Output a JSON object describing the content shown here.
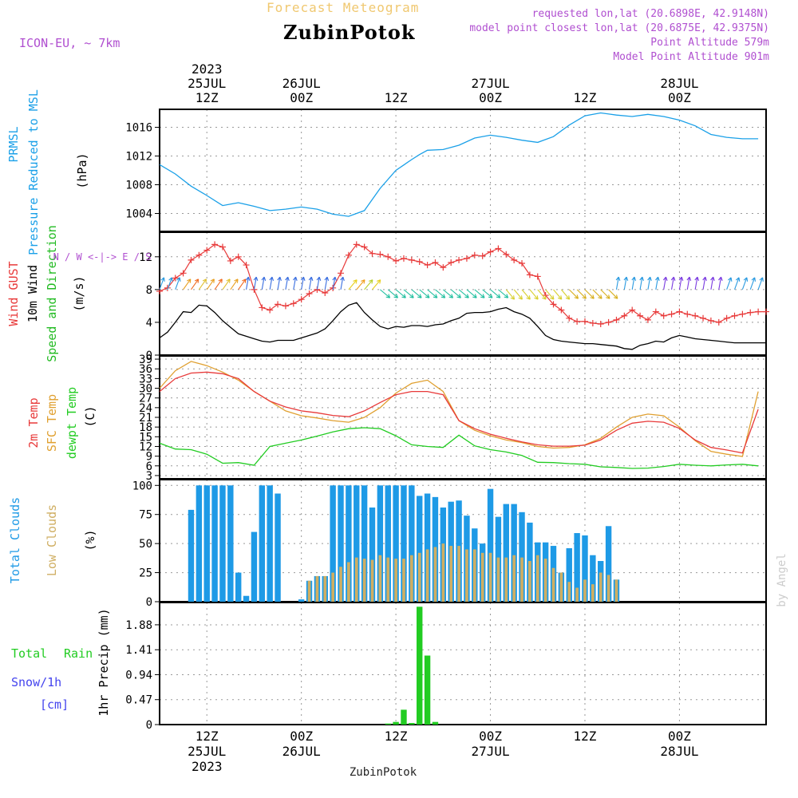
{
  "header": {
    "title": "Forecast Meteogram",
    "location": "ZubinPotok",
    "model": "ICON-EU, ~ 7km",
    "requested": "requested lon,lat (20.6898E, 42.9148N)",
    "closest": "model point closest lon,lat (20.6875E, 42.9375N)",
    "point_altitude": "Point Altitude 579m",
    "model_point_altitude": "Model Point Altitude 901m"
  },
  "footer": {
    "location": "ZubinPotok",
    "credit": "by Angel"
  },
  "colors": {
    "pressure": "#1aa0e8",
    "gust": "#e83a3a",
    "wind": "#000000",
    "dir": "#22bb22",
    "t2m": "#e83a3a",
    "tsfc": "#e0a030",
    "dew": "#22cc22",
    "total_cloud": "#1e9ae6",
    "low_cloud": "#cfae62",
    "rain": "#22cc22",
    "snow": "#4444ee",
    "purple": "#b04fd0",
    "grid": "#999999"
  },
  "chart_data": {
    "type": "meteogram",
    "time_axis": {
      "unit": "hours since 2023-07-25 06Z",
      "range": [
        0,
        77
      ],
      "top_year": "2023",
      "top_ticks": [
        {
          "hour": 6,
          "date": "25JUL",
          "label": "12Z"
        },
        {
          "hour": 18,
          "date": "26JUL",
          "label": "00Z"
        },
        {
          "hour": 30,
          "date": "",
          "label": "12Z"
        },
        {
          "hour": 42,
          "date": "27JUL",
          "label": "00Z"
        },
        {
          "hour": 54,
          "date": "",
          "label": "12Z"
        },
        {
          "hour": 66,
          "date": "28JUL",
          "label": "00Z"
        }
      ],
      "bottom_ticks": [
        {
          "hour": 6,
          "label": "12Z",
          "date": "25JUL",
          "year": "2023"
        },
        {
          "hour": 18,
          "label": "00Z",
          "date": "26JUL",
          "year": ""
        },
        {
          "hour": 30,
          "label": "12Z",
          "date": "",
          "year": ""
        },
        {
          "hour": 42,
          "label": "00Z",
          "date": "27JUL",
          "year": ""
        },
        {
          "hour": 54,
          "label": "12Z",
          "date": "",
          "year": ""
        },
        {
          "hour": 66,
          "label": "00Z",
          "date": "28JUL",
          "year": ""
        }
      ]
    },
    "panels": [
      {
        "id": "pressure",
        "type": "line",
        "labels": [
          "PRMSL",
          "Pressure Reduced to MSL"
        ],
        "unit": "(hPa)",
        "ylim": [
          1001.5,
          1018.5
        ],
        "yticks": [
          1004,
          1008,
          1012,
          1016
        ],
        "x": [
          0,
          2,
          4,
          6,
          8,
          10,
          12,
          14,
          16,
          18,
          20,
          22,
          24,
          26,
          28,
          30,
          32,
          33,
          34,
          36,
          38,
          40,
          42,
          44,
          46,
          48,
          50,
          52,
          54,
          56,
          58,
          60,
          62,
          64,
          66,
          68,
          70,
          72,
          74,
          76
        ],
        "values": [
          1010.8,
          1009.5,
          1007.8,
          1006.5,
          1005.1,
          1005.5,
          1005.0,
          1004.4,
          1004.6,
          1004.9,
          1004.6,
          1003.9,
          1003.6,
          1004.4,
          1007.5,
          1010.0,
          1011.5,
          1012.2,
          1012.8,
          1012.9,
          1013.5,
          1014.5,
          1014.9,
          1014.6,
          1014.2,
          1013.9,
          1014.7,
          1016.3,
          1017.6,
          1018.0,
          1017.7,
          1017.5,
          1017.8,
          1017.5,
          1017.0,
          1016.2,
          1015.0,
          1014.6,
          1014.4,
          1014.4
        ],
        "series": [
          {
            "name": "PRMSL",
            "color": "#1aa0e8"
          }
        ]
      },
      {
        "id": "wind",
        "type": "line",
        "labels": [
          "Wind GUST",
          "10m Wind",
          "Speed and Direction"
        ],
        "unit": "(m/s)",
        "compass": "N / W <-|-> E / S",
        "ylim": [
          0,
          15
        ],
        "yticks": [
          0,
          4,
          8,
          12
        ],
        "x": [
          0,
          1,
          2,
          3,
          4,
          5,
          6,
          7,
          8,
          9,
          10,
          11,
          12,
          13,
          14,
          15,
          16,
          17,
          18,
          19,
          20,
          21,
          22,
          23,
          24,
          25,
          26,
          27,
          28,
          29,
          30,
          31,
          32,
          33,
          34,
          35,
          36,
          37,
          38,
          39,
          40,
          41,
          42,
          43,
          44,
          45,
          46,
          47,
          48,
          49,
          50,
          51,
          52,
          53,
          54,
          55,
          56,
          57,
          58,
          59,
          60,
          61,
          62,
          63,
          64,
          65,
          66,
          67,
          68,
          69,
          70,
          71,
          72,
          73,
          74,
          75,
          76,
          77
        ],
        "series": [
          {
            "name": "Wind GUST",
            "color": "#e83a3a",
            "values": [
              7.8,
              8.2,
              9.4,
              10.0,
              11.6,
              12.2,
              12.8,
              13.5,
              13.2,
              11.5,
              12.0,
              11.0,
              8.0,
              5.8,
              5.5,
              6.2,
              6.0,
              6.3,
              6.8,
              7.5,
              8.0,
              7.6,
              8.2,
              10.0,
              12.2,
              13.5,
              13.2,
              12.4,
              12.3,
              12.0,
              11.5,
              11.8,
              11.6,
              11.4,
              11.0,
              11.3,
              10.7,
              11.3,
              11.6,
              11.8,
              12.2,
              12.1,
              12.6,
              13.0,
              12.3,
              11.6,
              11.2,
              9.8,
              9.6,
              7.3,
              6.2,
              5.5,
              4.5,
              4.1,
              4.1,
              3.9,
              3.8,
              4.0,
              4.3,
              4.8,
              5.5,
              4.8,
              4.3,
              5.3,
              4.8,
              5.0,
              5.3,
              5.0,
              4.8,
              4.5,
              4.2,
              4.0,
              4.5,
              4.8,
              5.0,
              5.2,
              5.3,
              5.3
            ]
          },
          {
            "name": "10m Wind",
            "color": "#000000",
            "values": [
              2.1,
              2.8,
              4.0,
              5.3,
              5.2,
              6.1,
              6.0,
              5.2,
              4.2,
              3.4,
              2.6,
              2.3,
              2.0,
              1.7,
              1.6,
              1.8,
              1.8,
              1.8,
              2.1,
              2.4,
              2.7,
              3.2,
              4.2,
              5.3,
              6.1,
              6.4,
              5.2,
              4.3,
              3.5,
              3.2,
              3.5,
              3.4,
              3.6,
              3.6,
              3.5,
              3.7,
              3.8,
              4.2,
              4.5,
              5.1,
              5.2,
              5.2,
              5.3,
              5.6,
              5.8,
              5.3,
              5.0,
              4.5,
              3.5,
              2.4,
              1.9,
              1.7,
              1.6,
              1.5,
              1.4,
              1.4,
              1.3,
              1.2,
              1.1,
              0.8,
              0.7,
              1.2,
              1.4,
              1.7,
              1.6,
              2.1,
              2.4,
              2.2,
              2.0,
              1.9,
              1.8,
              1.7,
              1.6,
              1.5,
              1.5,
              1.5,
              1.5,
              1.5
            ]
          }
        ]
      },
      {
        "id": "temp",
        "type": "line",
        "labels": [
          "2m Temp",
          "SFC Temp",
          "dewpt Temp"
        ],
        "unit": "(C)",
        "ylim": [
          2,
          40
        ],
        "yticks": [
          3,
          6,
          9,
          12,
          15,
          18,
          21,
          24,
          27,
          30,
          33,
          36,
          39
        ],
        "x": [
          0,
          2,
          4,
          6,
          8,
          10,
          12,
          14,
          16,
          18,
          20,
          22,
          24,
          26,
          28,
          30,
          32,
          34,
          36,
          38,
          40,
          42,
          44,
          46,
          48,
          50,
          52,
          54,
          56,
          58,
          60,
          62,
          64,
          66,
          68,
          70,
          72,
          74,
          76
        ],
        "series": [
          {
            "name": "2m Temp",
            "color": "#e83a3a",
            "values": [
              29.0,
              33.0,
              34.7,
              35.0,
              34.5,
              33.0,
              29.0,
              26.0,
              24.2,
              23.0,
              22.4,
              21.6,
              21.2,
              23.0,
              25.6,
              28.0,
              29.0,
              29.0,
              28.0,
              20.0,
              17.5,
              15.8,
              14.5,
              13.4,
              12.5,
              12.1,
              12.1,
              12.4,
              14.0,
              17.0,
              19.2,
              19.8,
              19.5,
              17.6,
              14.0,
              11.7,
              10.9,
              10.0,
              23.5
            ]
          },
          {
            "name": "SFC Temp",
            "color": "#e0a030",
            "values": [
              30.0,
              35.4,
              38.3,
              37.0,
              35.0,
              32.5,
              29.0,
              26.0,
              23.0,
              21.5,
              20.8,
              20.0,
              19.5,
              21.0,
              24.0,
              28.5,
              31.5,
              32.5,
              29.0,
              20.0,
              17.0,
              15.3,
              14.0,
              13.2,
              12.0,
              11.5,
              11.7,
              12.5,
              14.5,
              18.0,
              21.0,
              22.0,
              21.5,
              18.0,
              13.8,
              10.5,
              9.6,
              8.9,
              29.0
            ]
          },
          {
            "name": "dewpt Temp",
            "color": "#22cc22",
            "values": [
              13.0,
              11.2,
              11.0,
              9.6,
              6.8,
              7.0,
              6.2,
              12.0,
              13.0,
              14.0,
              15.2,
              16.5,
              17.5,
              17.8,
              17.5,
              15.3,
              12.5,
              12.0,
              11.7,
              15.5,
              12.2,
              11.0,
              10.3,
              9.2,
              7.1,
              7.0,
              6.7,
              6.5,
              5.7,
              5.5,
              5.2,
              5.3,
              5.8,
              6.5,
              6.2,
              6.0,
              6.3,
              6.5,
              6.0
            ]
          }
        ]
      },
      {
        "id": "clouds",
        "type": "bar",
        "labels": [
          "Total Clouds",
          "Low Clouds"
        ],
        "unit": "(%)",
        "ylim": [
          0,
          105
        ],
        "yticks": [
          0,
          25,
          50,
          75,
          100
        ],
        "x": [
          0,
          1,
          2,
          3,
          4,
          5,
          6,
          7,
          8,
          9,
          10,
          11,
          12,
          13,
          14,
          15,
          16,
          17,
          18,
          19,
          20,
          21,
          22,
          23,
          24,
          25,
          26,
          27,
          28,
          29,
          30,
          31,
          32,
          33,
          34,
          35,
          36,
          37,
          38,
          39,
          40,
          41,
          42,
          43,
          44,
          45,
          46,
          47,
          48,
          49,
          50,
          51,
          52,
          53,
          54,
          55,
          56,
          57,
          58,
          59,
          60,
          61,
          62,
          63,
          64,
          65,
          66,
          67,
          68,
          69,
          70,
          71,
          72,
          73,
          74,
          75,
          76,
          77
        ],
        "series": [
          {
            "name": "Total Clouds",
            "color": "#1e9ae6",
            "values": [
              0,
              0,
              0,
              0,
              79,
              100,
              100,
              100,
              100,
              100,
              25,
              5,
              60,
              100,
              100,
              93,
              0,
              0,
              2,
              18,
              22,
              22,
              100,
              100,
              100,
              100,
              100,
              81,
              100,
              100,
              100,
              100,
              100,
              91,
              93,
              90,
              81,
              86,
              87,
              74,
              63,
              50,
              97,
              73,
              84,
              84,
              77,
              68,
              51,
              51,
              48,
              25,
              46,
              59,
              57,
              40,
              35,
              65,
              19,
              0,
              0,
              0,
              0,
              0,
              0,
              0,
              0,
              0,
              0,
              0,
              0,
              0,
              0,
              0,
              0,
              0,
              0,
              0
            ]
          },
          {
            "name": "Low Clouds",
            "color": "#cfae62",
            "values": [
              0,
              0,
              0,
              0,
              0,
              0,
              0,
              0,
              0,
              0,
              0,
              0,
              0,
              0,
              0,
              0,
              0,
              0,
              0,
              18,
              22,
              22,
              25,
              30,
              34,
              38,
              37,
              36,
              40,
              38,
              37,
              37,
              40,
              42,
              45,
              47,
              50,
              48,
              48,
              45,
              45,
              42,
              42,
              38,
              38,
              40,
              38,
              35,
              40,
              37,
              29,
              25,
              17,
              12,
              19,
              15,
              25,
              23,
              19,
              0,
              0,
              0,
              0,
              0,
              0,
              0,
              0,
              0,
              0,
              0,
              0,
              0,
              0,
              0,
              0,
              0,
              0,
              0
            ]
          }
        ]
      },
      {
        "id": "precip",
        "type": "bar",
        "labels": [
          "Total",
          "Rain",
          "Snow/1h",
          "[cm]"
        ],
        "unit": "1hr Precip (mm)",
        "ylim": [
          0,
          2.3
        ],
        "yticks": [
          0,
          0.47,
          0.94,
          1.41,
          1.88
        ],
        "x": [
          29,
          30,
          31,
          32,
          33,
          34,
          35
        ],
        "series": [
          {
            "name": "Total Rain",
            "color": "#22cc22",
            "values": [
              0.02,
              0.05,
              0.28,
              0.03,
              2.22,
              1.3,
              0.05
            ]
          }
        ]
      }
    ]
  }
}
